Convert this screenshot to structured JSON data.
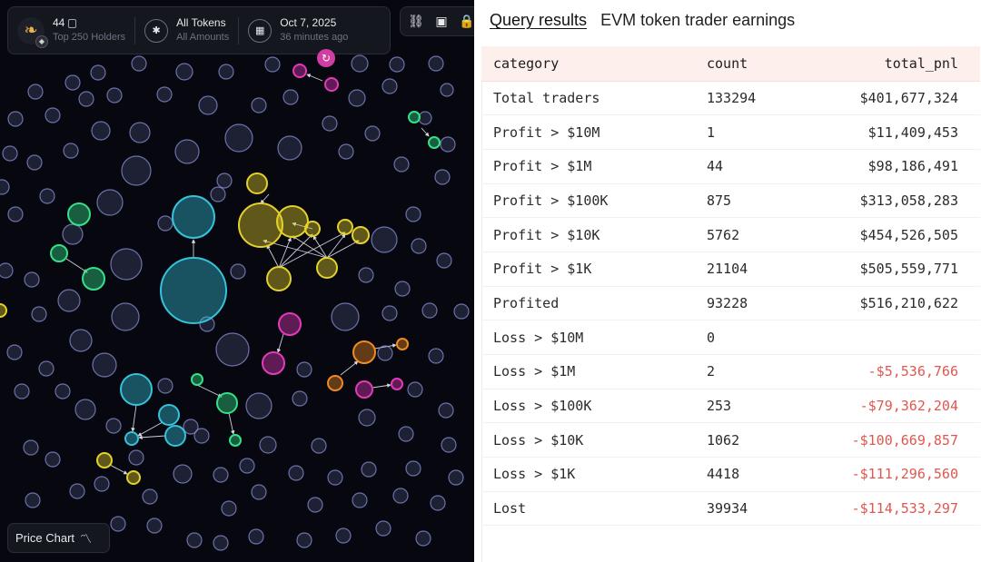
{
  "colors": {
    "map_background": "#07080f",
    "bubble_default": "#8a92d8",
    "bubble_cyan": "#35c3db",
    "bubble_yellow": "#e5d12b",
    "bubble_green": "#35e08a",
    "bubble_magenta": "#e33ab9",
    "bubble_orange": "#f08a24",
    "negative_pnl": "#e0574f",
    "header_row_bg": "#fcefec"
  },
  "bubble_map": {
    "token": {
      "logo_icon": "duck-logo-icon",
      "name": "44",
      "holders_label": "Top 250 Holders",
      "chain_icon": "bnb-chain-icon"
    },
    "token_filter": {
      "label": "All Tokens",
      "sub_label": "All Amounts",
      "icon": "asterisk-icon"
    },
    "snapshot": {
      "date": "Oct 7, 2025",
      "ago": "36 minutes ago",
      "icon": "calendar-icon"
    },
    "actions": [
      "link-icon",
      "save-icon",
      "lock-icon"
    ],
    "refresh_icon": "refresh-icon",
    "price_chart_button": {
      "label": "Price Chart",
      "icon": "trend-line-icon"
    }
  },
  "query_results": {
    "tab_label": "Query results",
    "query_name": "EVM token trader earnings",
    "columns": [
      "category",
      "count",
      "total_pnl"
    ],
    "rows": [
      {
        "category": "Total traders",
        "count": "133294",
        "total_pnl": "$401,677,324",
        "negative": false
      },
      {
        "category": "Profit > $10M",
        "count": "1",
        "total_pnl": "$11,409,453",
        "negative": false
      },
      {
        "category": "Profit > $1M",
        "count": "44",
        "total_pnl": "$98,186,491",
        "negative": false
      },
      {
        "category": "Profit > $100K",
        "count": "875",
        "total_pnl": "$313,058,283",
        "negative": false
      },
      {
        "category": "Profit > $10K",
        "count": "5762",
        "total_pnl": "$454,526,505",
        "negative": false
      },
      {
        "category": "Profit > $1K",
        "count": "21104",
        "total_pnl": "$505,559,771",
        "negative": false
      },
      {
        "category": "Profited",
        "count": "93228",
        "total_pnl": "$516,210,622",
        "negative": false
      },
      {
        "category": "Loss > $10M",
        "count": "0",
        "total_pnl": "",
        "negative": false
      },
      {
        "category": "Loss > $1M",
        "count": "2",
        "total_pnl": "-$5,536,766",
        "negative": true
      },
      {
        "category": "Loss > $100K",
        "count": "253",
        "total_pnl": "-$79,362,204",
        "negative": true
      },
      {
        "category": "Loss > $10K",
        "count": "1062",
        "total_pnl": "-$100,669,857",
        "negative": true
      },
      {
        "category": "Loss > $1K",
        "count": "4418",
        "total_pnl": "-$111,296,560",
        "negative": true
      },
      {
        "category": "Lost",
        "count": "39934",
        "total_pnl": "-$114,533,297",
        "negative": true
      }
    ]
  }
}
